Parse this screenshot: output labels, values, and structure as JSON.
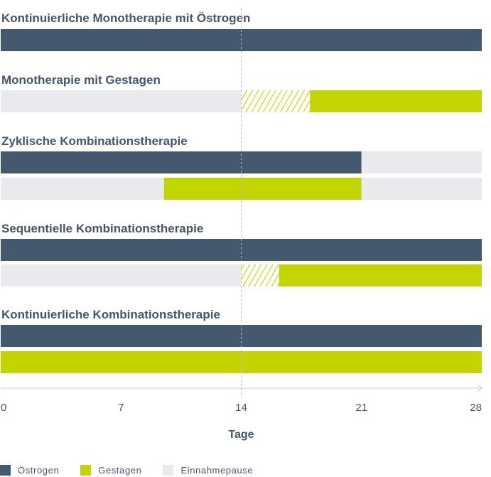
{
  "chart_data": {
    "type": "bar",
    "orientation": "horizontal",
    "xlim": [
      0,
      28
    ],
    "xticks": [
      0,
      7,
      14,
      21,
      28
    ],
    "xlabel": "Tage",
    "reference_line_x": 14,
    "colors": {
      "oestrogen": "#44596e",
      "gestagen": "#c2d500",
      "pause": "#e9eaee",
      "text": "#44566c"
    },
    "legend": [
      {
        "key": "oestrogen",
        "label": "Östrogen"
      },
      {
        "key": "gestagen",
        "label": "Gestagen"
      },
      {
        "key": "pause",
        "label": "Einnahmepause"
      }
    ],
    "groups": [
      {
        "title": "Kontinuierliche Monotherapie mit Östrogen",
        "rows": [
          [
            {
              "type": "oestrogen",
              "start": 0,
              "end": 28
            }
          ]
        ]
      },
      {
        "title": "Monotherapie mit Gestagen",
        "rows": [
          [
            {
              "type": "pause",
              "start": 0,
              "end": 14
            },
            {
              "type": "gestagen_optional",
              "start": 14,
              "end": 18
            },
            {
              "type": "gestagen",
              "start": 18,
              "end": 28
            }
          ]
        ]
      },
      {
        "title": "Zyklische Kombinationstherapie",
        "rows": [
          [
            {
              "type": "oestrogen",
              "start": 0,
              "end": 21
            },
            {
              "type": "pause",
              "start": 21,
              "end": 28
            }
          ],
          [
            {
              "type": "pause",
              "start": 0,
              "end": 9.5
            },
            {
              "type": "gestagen",
              "start": 9.5,
              "end": 21
            },
            {
              "type": "pause",
              "start": 21,
              "end": 28
            }
          ]
        ]
      },
      {
        "title": "Sequentielle Kombinationstherapie",
        "rows": [
          [
            {
              "type": "oestrogen",
              "start": 0,
              "end": 28
            }
          ],
          [
            {
              "type": "pause",
              "start": 0,
              "end": 14
            },
            {
              "type": "gestagen_optional",
              "start": 14,
              "end": 16.2
            },
            {
              "type": "gestagen",
              "start": 16.2,
              "end": 28
            }
          ]
        ]
      },
      {
        "title": "Kontinuierliche Kombinationstherapie",
        "rows": [
          [
            {
              "type": "oestrogen",
              "start": 0,
              "end": 28
            }
          ],
          [
            {
              "type": "gestagen",
              "start": 0,
              "end": 28
            }
          ]
        ]
      }
    ]
  }
}
